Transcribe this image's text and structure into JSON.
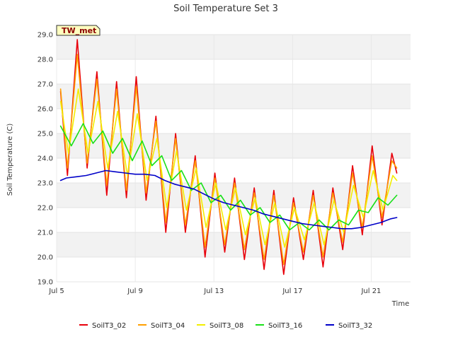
{
  "chart_data": {
    "type": "line",
    "title": "Soil Temperature Set 3",
    "xlabel": "Time",
    "ylabel": "Soil Temperature (C)",
    "ylim": [
      19.0,
      29.0
    ],
    "xlim_days": [
      0,
      18.0
    ],
    "yticks": [
      "19.0",
      "20.0",
      "21.0",
      "22.0",
      "23.0",
      "24.0",
      "25.0",
      "26.0",
      "27.0",
      "28.0",
      "29.0"
    ],
    "xticks": [
      {
        "day": 0,
        "label": "Jul 5"
      },
      {
        "day": 4,
        "label": "Jul 9"
      },
      {
        "day": 8,
        "label": "Jul 13"
      },
      {
        "day": 12,
        "label": "Jul 17"
      },
      {
        "day": 16,
        "label": "Jul 21"
      }
    ],
    "grid": true,
    "legend_position": "bottom",
    "annotation": "TW_met",
    "series": [
      {
        "name": "SoilT3_02",
        "color": "#e8000b",
        "values": [
          [
            0.2,
            26.7
          ],
          [
            0.55,
            23.3
          ],
          [
            1.05,
            28.8
          ],
          [
            1.55,
            23.6
          ],
          [
            2.05,
            27.5
          ],
          [
            2.55,
            22.5
          ],
          [
            3.05,
            27.1
          ],
          [
            3.55,
            22.4
          ],
          [
            4.05,
            27.3
          ],
          [
            4.55,
            22.3
          ],
          [
            5.05,
            25.7
          ],
          [
            5.55,
            21.0
          ],
          [
            6.05,
            25.0
          ],
          [
            6.55,
            21.0
          ],
          [
            7.05,
            24.1
          ],
          [
            7.55,
            20.0
          ],
          [
            8.05,
            23.4
          ],
          [
            8.55,
            20.2
          ],
          [
            9.05,
            23.2
          ],
          [
            9.55,
            19.9
          ],
          [
            10.05,
            22.8
          ],
          [
            10.55,
            19.5
          ],
          [
            11.05,
            22.7
          ],
          [
            11.55,
            19.3
          ],
          [
            12.05,
            22.4
          ],
          [
            12.55,
            19.9
          ],
          [
            13.05,
            22.7
          ],
          [
            13.55,
            19.6
          ],
          [
            14.05,
            22.8
          ],
          [
            14.55,
            20.3
          ],
          [
            15.05,
            23.7
          ],
          [
            15.55,
            20.9
          ],
          [
            16.05,
            24.5
          ],
          [
            16.55,
            21.3
          ],
          [
            17.05,
            24.2
          ],
          [
            17.3,
            23.4
          ]
        ]
      },
      {
        "name": "SoilT3_04",
        "color": "#ff9f00",
        "values": [
          [
            0.2,
            26.8
          ],
          [
            0.55,
            23.6
          ],
          [
            1.05,
            28.2
          ],
          [
            1.55,
            23.8
          ],
          [
            2.05,
            27.2
          ],
          [
            2.55,
            22.9
          ],
          [
            3.05,
            26.8
          ],
          [
            3.55,
            22.7
          ],
          [
            4.05,
            26.9
          ],
          [
            4.55,
            22.6
          ],
          [
            5.05,
            25.5
          ],
          [
            5.55,
            21.4
          ],
          [
            6.05,
            24.8
          ],
          [
            6.55,
            21.3
          ],
          [
            7.05,
            23.9
          ],
          [
            7.55,
            20.4
          ],
          [
            8.05,
            23.2
          ],
          [
            8.55,
            20.5
          ],
          [
            9.05,
            23.0
          ],
          [
            9.55,
            20.3
          ],
          [
            10.05,
            22.6
          ],
          [
            10.55,
            19.9
          ],
          [
            11.05,
            22.5
          ],
          [
            11.55,
            19.7
          ],
          [
            12.05,
            22.2
          ],
          [
            12.55,
            20.2
          ],
          [
            13.05,
            22.5
          ],
          [
            13.55,
            20.0
          ],
          [
            14.05,
            22.6
          ],
          [
            14.55,
            20.6
          ],
          [
            15.05,
            23.4
          ],
          [
            15.55,
            21.2
          ],
          [
            16.05,
            24.1
          ],
          [
            16.55,
            21.6
          ],
          [
            17.05,
            23.9
          ],
          [
            17.3,
            23.6
          ]
        ]
      },
      {
        "name": "SoilT3_08",
        "color": "#f2ee00",
        "values": [
          [
            0.2,
            26.3
          ],
          [
            0.6,
            24.2
          ],
          [
            1.1,
            26.8
          ],
          [
            1.6,
            24.2
          ],
          [
            2.1,
            26.3
          ],
          [
            2.6,
            23.6
          ],
          [
            3.1,
            25.9
          ],
          [
            3.6,
            23.3
          ],
          [
            4.1,
            25.8
          ],
          [
            4.6,
            23.1
          ],
          [
            5.1,
            24.8
          ],
          [
            5.6,
            22.0
          ],
          [
            6.1,
            24.3
          ],
          [
            6.6,
            21.9
          ],
          [
            7.1,
            23.6
          ],
          [
            7.6,
            21.2
          ],
          [
            8.1,
            23.0
          ],
          [
            8.6,
            21.1
          ],
          [
            9.1,
            22.8
          ],
          [
            9.6,
            20.9
          ],
          [
            10.1,
            22.4
          ],
          [
            10.6,
            20.5
          ],
          [
            11.1,
            22.2
          ],
          [
            11.6,
            20.4
          ],
          [
            12.1,
            22.0
          ],
          [
            12.6,
            20.7
          ],
          [
            13.1,
            22.2
          ],
          [
            13.6,
            20.5
          ],
          [
            14.1,
            22.3
          ],
          [
            14.6,
            21.0
          ],
          [
            15.1,
            22.9
          ],
          [
            15.6,
            21.6
          ],
          [
            16.1,
            23.5
          ],
          [
            16.6,
            21.9
          ],
          [
            17.1,
            23.3
          ],
          [
            17.3,
            23.1
          ]
        ]
      },
      {
        "name": "SoilT3_16",
        "color": "#19e019",
        "values": [
          [
            0.2,
            25.3
          ],
          [
            0.75,
            24.5
          ],
          [
            1.35,
            25.4
          ],
          [
            1.85,
            24.6
          ],
          [
            2.35,
            25.1
          ],
          [
            2.85,
            24.2
          ],
          [
            3.35,
            24.8
          ],
          [
            3.85,
            23.9
          ],
          [
            4.35,
            24.7
          ],
          [
            4.85,
            23.7
          ],
          [
            5.35,
            24.1
          ],
          [
            5.85,
            23.1
          ],
          [
            6.35,
            23.5
          ],
          [
            6.85,
            22.7
          ],
          [
            7.35,
            23.0
          ],
          [
            7.85,
            22.2
          ],
          [
            8.35,
            22.5
          ],
          [
            8.85,
            21.9
          ],
          [
            9.35,
            22.3
          ],
          [
            9.85,
            21.7
          ],
          [
            10.35,
            22.0
          ],
          [
            10.85,
            21.4
          ],
          [
            11.35,
            21.7
          ],
          [
            11.85,
            21.1
          ],
          [
            12.35,
            21.4
          ],
          [
            12.85,
            21.1
          ],
          [
            13.35,
            21.5
          ],
          [
            13.85,
            21.1
          ],
          [
            14.35,
            21.5
          ],
          [
            14.85,
            21.3
          ],
          [
            15.35,
            21.9
          ],
          [
            15.85,
            21.8
          ],
          [
            16.35,
            22.4
          ],
          [
            16.85,
            22.1
          ],
          [
            17.3,
            22.5
          ]
        ]
      },
      {
        "name": "SoilT3_32",
        "color": "#0000c8",
        "values": [
          [
            0.2,
            23.1
          ],
          [
            0.5,
            23.2
          ],
          [
            1.0,
            23.25
          ],
          [
            1.5,
            23.3
          ],
          [
            2.0,
            23.4
          ],
          [
            2.5,
            23.5
          ],
          [
            3.0,
            23.45
          ],
          [
            3.5,
            23.4
          ],
          [
            4.0,
            23.35
          ],
          [
            4.5,
            23.35
          ],
          [
            5.0,
            23.3
          ],
          [
            5.5,
            23.1
          ],
          [
            6.0,
            22.95
          ],
          [
            6.5,
            22.85
          ],
          [
            7.0,
            22.75
          ],
          [
            7.5,
            22.55
          ],
          [
            8.0,
            22.35
          ],
          [
            8.5,
            22.2
          ],
          [
            9.0,
            22.1
          ],
          [
            9.5,
            22.0
          ],
          [
            10.0,
            21.9
          ],
          [
            10.5,
            21.75
          ],
          [
            11.0,
            21.65
          ],
          [
            11.5,
            21.55
          ],
          [
            12.0,
            21.45
          ],
          [
            12.5,
            21.35
          ],
          [
            13.0,
            21.3
          ],
          [
            13.5,
            21.25
          ],
          [
            14.0,
            21.2
          ],
          [
            14.5,
            21.15
          ],
          [
            15.0,
            21.15
          ],
          [
            15.5,
            21.2
          ],
          [
            16.0,
            21.3
          ],
          [
            16.5,
            21.4
          ],
          [
            17.0,
            21.55
          ],
          [
            17.3,
            21.6
          ]
        ]
      }
    ]
  }
}
